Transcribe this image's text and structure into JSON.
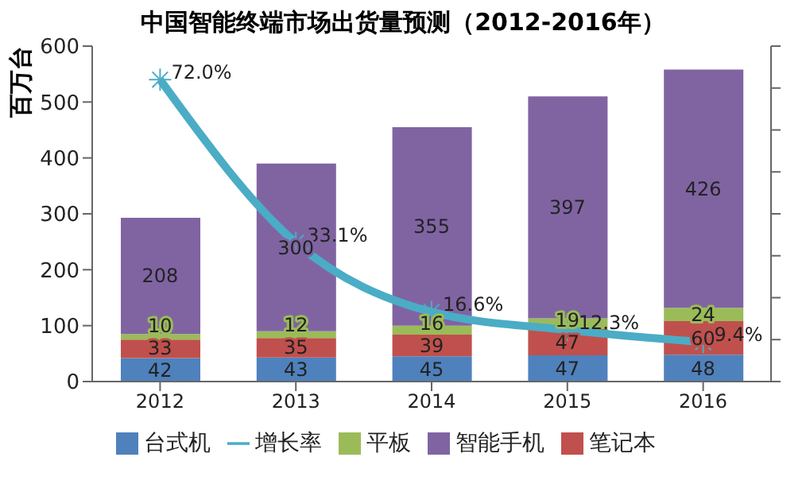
{
  "chart_data": {
    "type": "bar",
    "title": "中国智能终端市场出货量预测（2012-2016年）",
    "ylabel": "百万台",
    "categories": [
      "2012",
      "2013",
      "2014",
      "2015",
      "2016"
    ],
    "stacked": true,
    "data_labels": true,
    "series": [
      {
        "name": "台式机",
        "color": "#4f81bd",
        "values": [
          42,
          43,
          45,
          47,
          48
        ]
      },
      {
        "name": "笔记本",
        "color": "#c0504d",
        "values": [
          33,
          35,
          39,
          47,
          60
        ]
      },
      {
        "name": "平板",
        "color": "#9bbb59",
        "values": [
          10,
          12,
          16,
          19,
          24
        ]
      },
      {
        "name": "智能手机",
        "color": "#8064a2",
        "values": [
          208,
          300,
          355,
          397,
          426
        ]
      },
      {
        "name": "增长率",
        "type": "line",
        "axis": "y2",
        "color": "#4bacc6",
        "values": [
          72.0,
          33.1,
          16.6,
          12.3,
          9.4
        ],
        "value_labels": [
          "72.0%",
          "33.1%",
          "16.6%",
          "12.3%",
          "9.4%"
        ]
      }
    ],
    "ylim": [
      0,
      600
    ],
    "yticks": [
      0,
      100,
      200,
      300,
      400,
      500,
      600
    ],
    "y2lim": [
      0,
      80
    ],
    "y2ticks": [
      {
        "value": 0,
        "label": null
      },
      {
        "value": 10,
        "label": null
      },
      {
        "value": 20,
        "label": null
      },
      {
        "value": 30,
        "label": null
      },
      {
        "value": 40,
        "label": null
      },
      {
        "value": 50,
        "label": null
      },
      {
        "value": 60,
        "label": null
      },
      {
        "value": 70,
        "label": null
      },
      {
        "value": 80,
        "label": null
      }
    ],
    "grid": false,
    "legend": "bottom",
    "marker": "cross",
    "line_style": "solid"
  }
}
